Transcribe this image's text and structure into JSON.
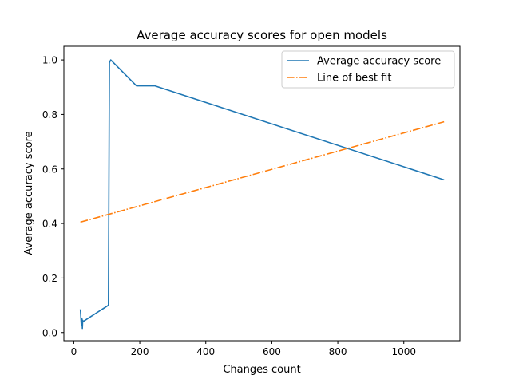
{
  "chart_data": {
    "type": "line",
    "title": "Average accuracy scores for open models",
    "xlabel": "Changes count",
    "ylabel": "Average accuracy score",
    "xlim": [
      -30,
      1170
    ],
    "ylim": [
      -0.03,
      1.05
    ],
    "xticks": [
      0,
      200,
      400,
      600,
      800,
      1000
    ],
    "yticks": [
      0.0,
      0.2,
      0.4,
      0.6,
      0.8,
      1.0
    ],
    "grid": false,
    "legend_position": "top-right",
    "series": [
      {
        "name": "Average accuracy score",
        "color": "#1f77b4",
        "style": "solid",
        "x": [
          20,
          23,
          25,
          26,
          27,
          28,
          105,
          108,
          112,
          190,
          245,
          1122
        ],
        "y": [
          0.085,
          0.025,
          0.05,
          0.015,
          0.045,
          0.04,
          0.1,
          0.99,
          1.0,
          0.905,
          0.905,
          0.56
        ]
      },
      {
        "name": "Line of best fit",
        "color": "#ff7f0e",
        "style": "dashdot",
        "x": [
          20,
          1122
        ],
        "y": [
          0.405,
          0.773
        ]
      }
    ]
  }
}
